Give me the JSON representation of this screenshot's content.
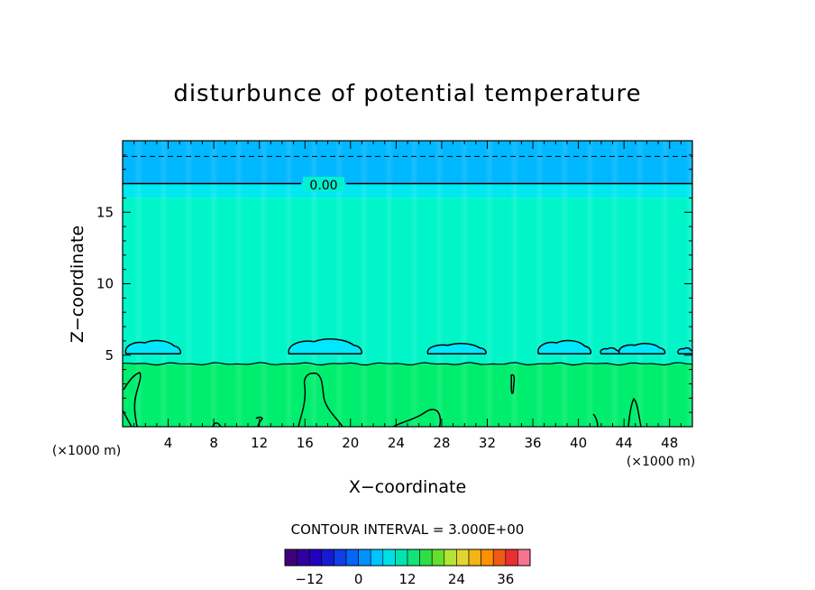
{
  "chart_data": {
    "type": "heatmap",
    "title": "disturbunce of potential temperature",
    "xlabel": "X−coordinate",
    "ylabel": "Z−coordinate",
    "x_unit": "(×1000 m)",
    "x_unit_right": "(×1000 m)",
    "xlim": [
      0,
      50
    ],
    "ylim": [
      0,
      20
    ],
    "x_ticks": [
      4,
      8,
      12,
      16,
      20,
      24,
      28,
      32,
      36,
      40,
      44,
      48
    ],
    "y_ticks": [
      5,
      10,
      15
    ],
    "contour_interval_text": "CONTOUR INTERVAL = 3.000E+00",
    "contour_label": "0.00",
    "colorbar": {
      "min": -18,
      "max": 42,
      "step": 3,
      "tick_values": [
        -12,
        0,
        12,
        24,
        36
      ],
      "tick_labels": [
        "−12",
        "0",
        "12",
        "24",
        "36"
      ]
    },
    "field_bands": [
      {
        "z_from": 17.0,
        "z_to": 20.0,
        "value": -1.5,
        "color": "#00b8ff"
      },
      {
        "z_from": 16.0,
        "z_to": 17.0,
        "value": 1.0,
        "color": "#00e8f0"
      },
      {
        "z_from": 4.4,
        "z_to": 16.0,
        "value": 2.0,
        "color": "#00f5c8"
      },
      {
        "z_from": 0.0,
        "z_to": 4.4,
        "value": 4.0,
        "color": "#00ee6e"
      }
    ],
    "dashed_contour_z": 18.9,
    "zero_contour_z": 17.0,
    "solid_contour_z": 4.4,
    "cells": [
      {
        "x": [
          0.3,
          5.0
        ],
        "z": [
          5.1,
          6.0
        ]
      },
      {
        "x": [
          14.6,
          20.9
        ],
        "z": [
          5.1,
          6.1
        ]
      },
      {
        "x": [
          26.8,
          31.8
        ],
        "z": [
          5.1,
          5.8
        ]
      },
      {
        "x": [
          36.5,
          41.0
        ],
        "z": [
          5.1,
          6.0
        ]
      },
      {
        "x": [
          42.0,
          43.5
        ],
        "z": [
          5.1,
          5.5
        ]
      },
      {
        "x": [
          43.6,
          47.5
        ],
        "z": [
          5.1,
          5.8
        ]
      },
      {
        "x": [
          48.8,
          50.0
        ],
        "z": [
          5.1,
          5.5
        ]
      }
    ],
    "colors": {
      "cell_fill": "#00e8ff",
      "top_band": "#00b0ff"
    }
  }
}
